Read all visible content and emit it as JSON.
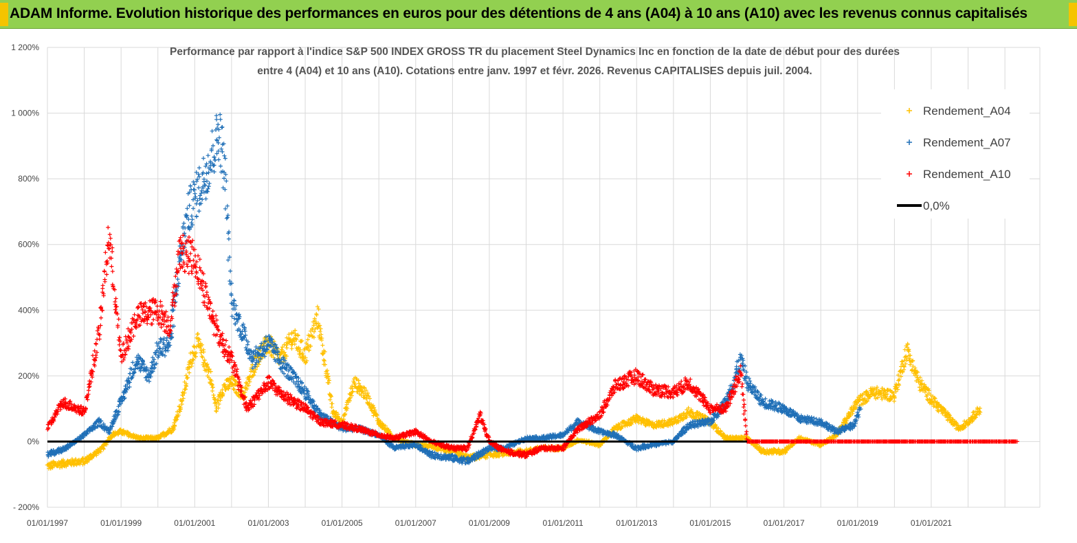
{
  "banner": {
    "title": "ADAM Informe. Evolution historique des performances en euros pour des détentions de 4 ans (A04) à 10 ans (A10) avec les revenus connus capitalisés",
    "color": "#92d050"
  },
  "chart_data": {
    "type": "scatter",
    "title_line1": "Performance par rapport à l'indice S&P 500 INDEX GROSS TR  du placement Steel Dynamics Inc en fonction de la date de début pour des durées",
    "title_line2": "entre 4 (A04) et 10 ans (A10). Cotations entre janv. 1997 et févr. 2026. Revenus CAPITALISES depuis juil. 2004.",
    "ylim": [
      -200,
      1200
    ],
    "y_ticks": [
      -200,
      0,
      200,
      400,
      600,
      800,
      1000,
      1200
    ],
    "y_tick_labels": [
      "- 200%",
      "0%",
      "200%",
      "400%",
      "600%",
      "800%",
      "1 000%",
      "1 200%"
    ],
    "x_ticks": [
      1997,
      1999,
      2001,
      2003,
      2005,
      2007,
      2009,
      2011,
      2013,
      2015,
      2017,
      2019,
      2021
    ],
    "x_tick_labels": [
      "01/01/1997",
      "01/01/1999",
      "01/01/2001",
      "01/01/2003",
      "01/01/2005",
      "01/01/2007",
      "01/01/2009",
      "01/01/2011",
      "01/01/2013",
      "01/01/2015",
      "01/01/2017",
      "01/01/2019",
      "01/01/2021"
    ],
    "grid": true,
    "legend_position": "top-right",
    "series": [
      {
        "name": "Rendement_A04",
        "color": "#ffc000",
        "marker": "plus",
        "points": [
          [
            "1997-01-01",
            -75
          ],
          [
            "1997-07-01",
            -65
          ],
          [
            "1998-01-01",
            -60
          ],
          [
            "1998-07-01",
            -20
          ],
          [
            "1998-10-01",
            20
          ],
          [
            "1999-01-01",
            30
          ],
          [
            "1999-07-01",
            10
          ],
          [
            "2000-01-01",
            10
          ],
          [
            "2000-06-01",
            40
          ],
          [
            "2000-09-01",
            130
          ],
          [
            "2000-12-01",
            260
          ],
          [
            "2001-02-01",
            300
          ],
          [
            "2001-06-01",
            200
          ],
          [
            "2001-08-01",
            100
          ],
          [
            "2001-10-01",
            160
          ],
          [
            "2002-01-01",
            180
          ],
          [
            "2002-05-01",
            140
          ],
          [
            "2002-09-01",
            250
          ],
          [
            "2003-01-01",
            300
          ],
          [
            "2003-05-01",
            250
          ],
          [
            "2003-09-01",
            320
          ],
          [
            "2004-01-01",
            260
          ],
          [
            "2004-05-01",
            380
          ],
          [
            "2004-07-01",
            270
          ],
          [
            "2004-10-01",
            90
          ],
          [
            "2005-01-01",
            60
          ],
          [
            "2005-05-01",
            180
          ],
          [
            "2005-09-01",
            140
          ],
          [
            "2006-01-01",
            60
          ],
          [
            "2006-06-01",
            10
          ],
          [
            "2007-01-01",
            -10
          ],
          [
            "2007-06-01",
            -15
          ],
          [
            "2008-01-01",
            -30
          ],
          [
            "2008-06-01",
            -50
          ],
          [
            "2009-01-01",
            -40
          ],
          [
            "2009-06-01",
            -35
          ],
          [
            "2010-01-01",
            -30
          ],
          [
            "2010-06-01",
            -20
          ],
          [
            "2011-01-01",
            -20
          ],
          [
            "2011-06-01",
            5
          ],
          [
            "2012-01-01",
            -10
          ],
          [
            "2012-06-01",
            40
          ],
          [
            "2013-01-01",
            70
          ],
          [
            "2013-06-01",
            50
          ],
          [
            "2014-01-01",
            60
          ],
          [
            "2014-06-01",
            90
          ],
          [
            "2015-01-01",
            60
          ],
          [
            "2015-06-01",
            10
          ],
          [
            "2016-01-01",
            10
          ],
          [
            "2016-06-01",
            -30
          ],
          [
            "2017-01-01",
            -30
          ],
          [
            "2017-06-01",
            10
          ],
          [
            "2018-01-01",
            -10
          ],
          [
            "2018-06-01",
            20
          ],
          [
            "2019-01-01",
            120
          ],
          [
            "2019-06-01",
            150
          ],
          [
            "2020-01-01",
            140
          ],
          [
            "2020-05-01",
            280
          ],
          [
            "2020-09-01",
            180
          ],
          [
            "2021-01-01",
            130
          ],
          [
            "2021-06-01",
            80
          ],
          [
            "2021-10-01",
            40
          ],
          [
            "2022-01-01",
            60
          ],
          [
            "2022-05-01",
            100
          ]
        ]
      },
      {
        "name": "Rendement_A07",
        "color": "#1f6fb7",
        "marker": "plus",
        "points": [
          [
            "1997-01-01",
            -40
          ],
          [
            "1997-07-01",
            -20
          ],
          [
            "1998-01-01",
            20
          ],
          [
            "1998-06-01",
            60
          ],
          [
            "1998-09-01",
            30
          ],
          [
            "1999-01-01",
            120
          ],
          [
            "1999-06-01",
            250
          ],
          [
            "1999-10-01",
            200
          ],
          [
            "2000-01-01",
            280
          ],
          [
            "2000-05-01",
            300
          ],
          [
            "2000-08-01",
            550
          ],
          [
            "2000-11-01",
            700
          ],
          [
            "2001-03-01",
            780
          ],
          [
            "2001-06-01",
            850
          ],
          [
            "2001-09-01",
            950
          ],
          [
            "2001-11-01",
            800
          ],
          [
            "2002-01-01",
            420
          ],
          [
            "2002-04-01",
            350
          ],
          [
            "2002-08-01",
            250
          ],
          [
            "2003-01-01",
            300
          ],
          [
            "2003-06-01",
            230
          ],
          [
            "2004-01-01",
            150
          ],
          [
            "2004-06-01",
            80
          ],
          [
            "2005-01-01",
            40
          ],
          [
            "2005-06-01",
            40
          ],
          [
            "2006-01-01",
            20
          ],
          [
            "2006-06-01",
            -20
          ],
          [
            "2007-01-01",
            -10
          ],
          [
            "2007-06-01",
            -40
          ],
          [
            "2008-01-01",
            -50
          ],
          [
            "2008-06-01",
            -60
          ],
          [
            "2009-01-01",
            -20
          ],
          [
            "2009-06-01",
            -20
          ],
          [
            "2010-01-01",
            10
          ],
          [
            "2010-06-01",
            10
          ],
          [
            "2011-01-01",
            20
          ],
          [
            "2011-06-01",
            60
          ],
          [
            "2012-01-01",
            30
          ],
          [
            "2012-06-01",
            20
          ],
          [
            "2013-01-01",
            -20
          ],
          [
            "2013-06-01",
            -10
          ],
          [
            "2014-01-01",
            0
          ],
          [
            "2014-06-01",
            50
          ],
          [
            "2015-01-01",
            60
          ],
          [
            "2015-06-01",
            120
          ],
          [
            "2015-11-01",
            250
          ],
          [
            "2016-01-01",
            180
          ],
          [
            "2016-06-01",
            120
          ],
          [
            "2017-01-01",
            100
          ],
          [
            "2017-06-01",
            70
          ],
          [
            "2018-01-01",
            60
          ],
          [
            "2018-06-01",
            30
          ],
          [
            "2018-12-01",
            50
          ],
          [
            "2019-02-01",
            110
          ]
        ]
      },
      {
        "name": "Rendement_A10",
        "color": "#ff0000",
        "marker": "plus",
        "points": [
          [
            "1997-01-01",
            40
          ],
          [
            "1997-06-01",
            120
          ],
          [
            "1998-01-01",
            90
          ],
          [
            "1998-06-01",
            340
          ],
          [
            "1998-09-01",
            630
          ],
          [
            "1998-11-01",
            450
          ],
          [
            "1999-01-01",
            250
          ],
          [
            "1999-06-01",
            380
          ],
          [
            "2000-01-01",
            400
          ],
          [
            "2000-05-01",
            350
          ],
          [
            "2000-08-01",
            580
          ],
          [
            "2001-01-01",
            560
          ],
          [
            "2001-06-01",
            400
          ],
          [
            "2001-09-01",
            320
          ],
          [
            "2002-01-01",
            250
          ],
          [
            "2002-06-01",
            100
          ],
          [
            "2003-01-01",
            180
          ],
          [
            "2003-06-01",
            140
          ],
          [
            "2004-01-01",
            100
          ],
          [
            "2004-06-01",
            60
          ],
          [
            "2005-01-01",
            50
          ],
          [
            "2005-06-01",
            40
          ],
          [
            "2006-01-01",
            20
          ],
          [
            "2006-06-01",
            10
          ],
          [
            "2007-01-01",
            30
          ],
          [
            "2007-06-01",
            0
          ],
          [
            "2008-01-01",
            -20
          ],
          [
            "2008-06-01",
            -20
          ],
          [
            "2008-10-01",
            80
          ],
          [
            "2009-01-01",
            0
          ],
          [
            "2009-06-01",
            -30
          ],
          [
            "2010-01-01",
            -40
          ],
          [
            "2010-06-01",
            -20
          ],
          [
            "2011-01-01",
            -20
          ],
          [
            "2011-06-01",
            40
          ],
          [
            "2012-01-01",
            80
          ],
          [
            "2012-06-01",
            170
          ],
          [
            "2013-01-01",
            200
          ],
          [
            "2013-06-01",
            160
          ],
          [
            "2014-01-01",
            150
          ],
          [
            "2014-06-01",
            180
          ],
          [
            "2015-01-01",
            100
          ],
          [
            "2015-06-01",
            100
          ],
          [
            "2015-11-01",
            210
          ],
          [
            "2016-01-01",
            0
          ],
          [
            "2019-01-01",
            0
          ],
          [
            "2022-01-01",
            0
          ],
          [
            "2023-05-01",
            0
          ]
        ]
      }
    ],
    "reference_line": {
      "name": "0,0%",
      "value": 0,
      "color": "#000000"
    }
  }
}
